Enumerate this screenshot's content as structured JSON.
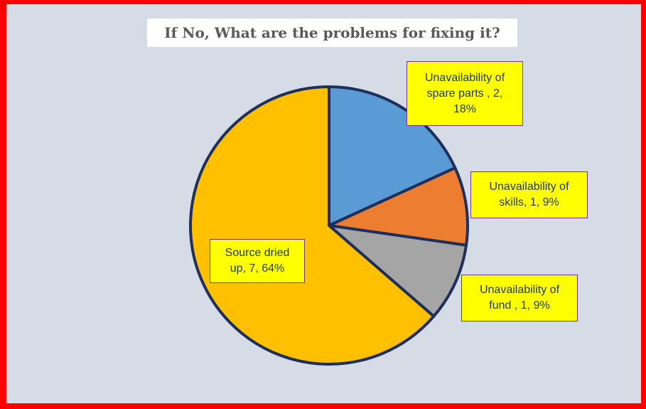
{
  "chart_data": {
    "type": "pie",
    "title": "If No, What are the problems for fixing it?",
    "categories": [
      "Unavailability of spare parts",
      "Unavailability of skills",
      "Unavailability of fund",
      "Source dried up"
    ],
    "values": [
      2,
      1,
      1,
      7
    ],
    "percentages": [
      "18%",
      "9%",
      "9%",
      "64%"
    ],
    "colors": [
      "#5b9bd5",
      "#ed7d31",
      "#a5a5a5",
      "#ffc000"
    ],
    "data_labels": [
      [
        "Unavailability of",
        "spare parts , 2,",
        "18%"
      ],
      [
        "Unavailability of",
        "skills, 1, 9%"
      ],
      [
        "Unavailability of",
        "fund , 1, 9%"
      ],
      [
        "Source dried",
        "up, 7, 64%"
      ]
    ],
    "legend": "none"
  }
}
